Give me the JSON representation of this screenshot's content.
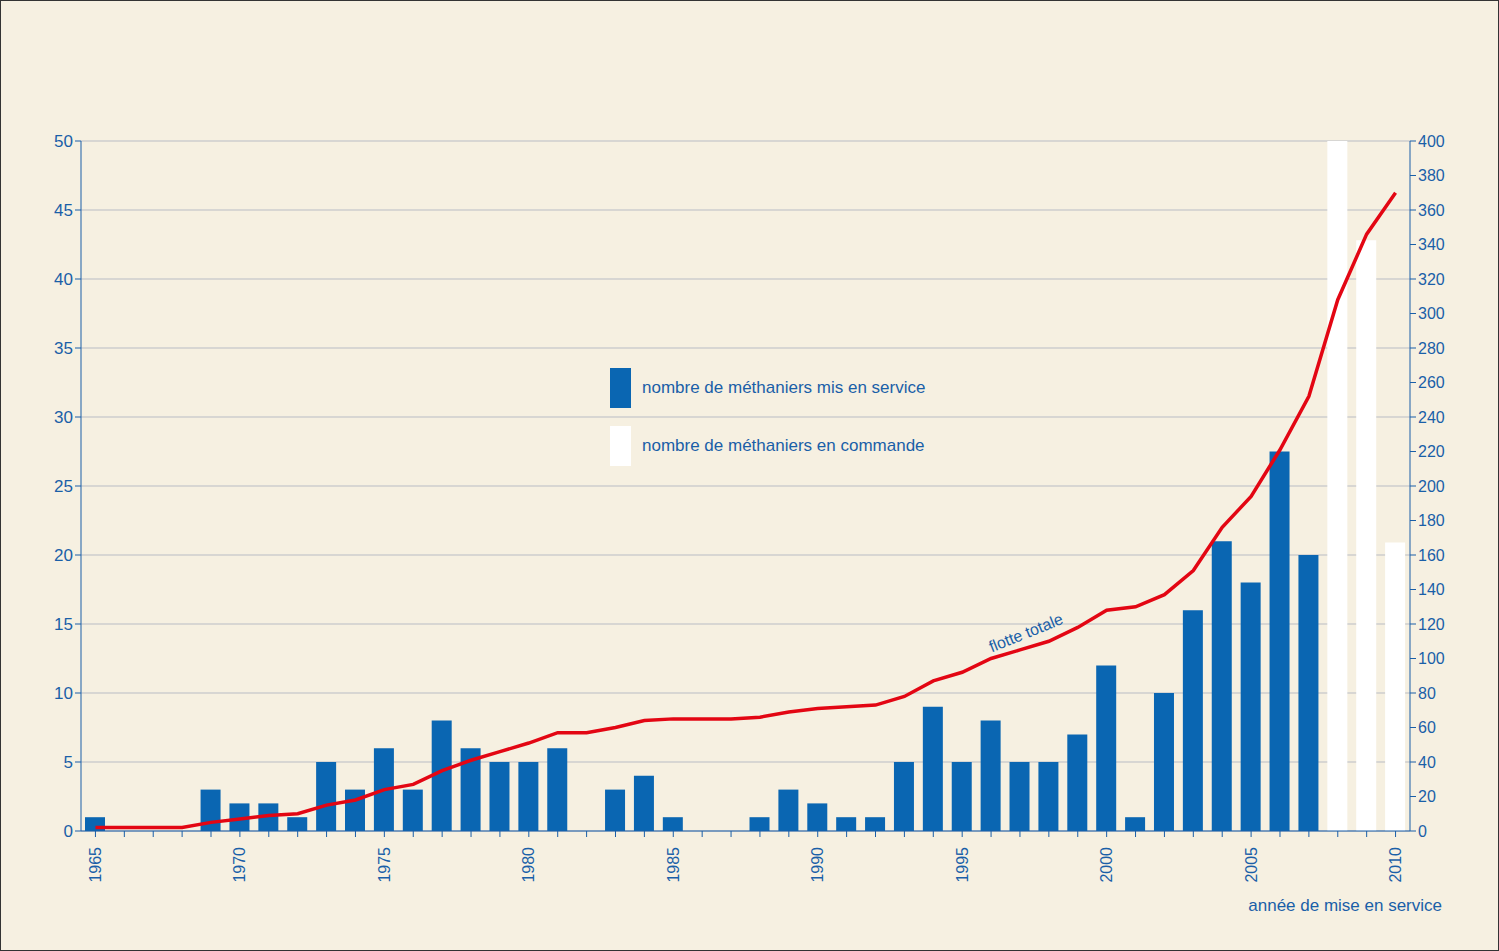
{
  "chart_data": {
    "type": "bar",
    "x_label": "année de mise en service",
    "categories": [
      "1965",
      null,
      null,
      null,
      null,
      "1970",
      null,
      null,
      null,
      null,
      "1975",
      null,
      null,
      null,
      null,
      "1980",
      null,
      null,
      null,
      null,
      "1985",
      null,
      null,
      null,
      null,
      "1990",
      null,
      null,
      null,
      null,
      "1995",
      null,
      null,
      null,
      null,
      "2000",
      null,
      null,
      null,
      null,
      "2005",
      null,
      null,
      null,
      null,
      "2010"
    ],
    "series": [
      {
        "name": "nombre de méthaniers mis en service",
        "type": "bar",
        "color": "#0a66b2",
        "values": [
          1,
          0,
          0,
          0,
          3,
          2,
          2,
          1,
          5,
          3,
          6,
          3,
          8,
          6,
          5,
          5,
          6,
          0,
          3,
          4,
          1,
          0,
          0,
          1,
          3,
          2,
          1,
          1,
          5,
          9,
          5,
          8,
          5,
          5,
          7,
          12,
          1,
          10,
          16,
          21,
          18,
          27.5,
          20,
          null,
          null,
          null
        ]
      },
      {
        "name": "nombre de méthaniers en commande",
        "type": "bar",
        "color": "#ffffff",
        "values": [
          null,
          null,
          null,
          null,
          null,
          null,
          null,
          null,
          null,
          null,
          null,
          null,
          null,
          null,
          null,
          null,
          null,
          null,
          null,
          null,
          null,
          null,
          null,
          null,
          null,
          null,
          null,
          null,
          null,
          null,
          null,
          null,
          null,
          null,
          null,
          null,
          null,
          null,
          null,
          null,
          null,
          null,
          null,
          50,
          42.8,
          20.9
        ]
      },
      {
        "name": "flotte totale",
        "type": "line",
        "axis": "y2",
        "color": "#e30613",
        "values": [
          2,
          2,
          2,
          2,
          5,
          7,
          9,
          10,
          15,
          18,
          24,
          27,
          35,
          41,
          46,
          51,
          57,
          57,
          60,
          64,
          65,
          65,
          65,
          66,
          69,
          71,
          72,
          73,
          78,
          87,
          92,
          100,
          105,
          110,
          118,
          128,
          130,
          137,
          151,
          176,
          194,
          221,
          252,
          308,
          346,
          370
        ]
      }
    ],
    "annotations": [
      {
        "text": "flotte totale"
      }
    ],
    "ylim": [
      0,
      50
    ],
    "yticks": [
      0,
      5,
      10,
      15,
      20,
      25,
      30,
      35,
      40,
      45,
      50
    ],
    "y2lim": [
      0,
      400
    ],
    "y2ticks": [
      0,
      20,
      40,
      60,
      80,
      100,
      120,
      140,
      160,
      180,
      200,
      220,
      240,
      260,
      280,
      300,
      320,
      340,
      360,
      380,
      400
    ],
    "grid": true,
    "legend": "center"
  }
}
